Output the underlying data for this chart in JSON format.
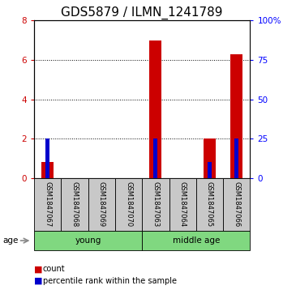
{
  "title": "GDS5879 / ILMN_1241789",
  "samples": [
    "GSM1847067",
    "GSM1847068",
    "GSM1847069",
    "GSM1847070",
    "GSM1847063",
    "GSM1847064",
    "GSM1847065",
    "GSM1847066"
  ],
  "red_values": [
    0.8,
    0.0,
    0.0,
    0.0,
    7.0,
    0.0,
    2.0,
    6.3
  ],
  "blue_values": [
    25.0,
    0.0,
    0.0,
    0.0,
    25.0,
    0.0,
    10.0,
    25.0
  ],
  "ylim_left": [
    0,
    8
  ],
  "ylim_right": [
    0,
    100
  ],
  "yticks_left": [
    0,
    2,
    4,
    6,
    8
  ],
  "yticks_right": [
    0,
    25,
    50,
    75,
    100
  ],
  "ytick_labels_right": [
    "0",
    "25",
    "50",
    "75",
    "100%"
  ],
  "groups": [
    {
      "label": "young",
      "indices": [
        0,
        1,
        2,
        3
      ]
    },
    {
      "label": "middle age",
      "indices": [
        4,
        5,
        6,
        7
      ]
    }
  ],
  "age_label": "age",
  "legend_red": "count",
  "legend_blue": "percentile rank within the sample",
  "red_color": "#cc0000",
  "blue_color": "#0000cc",
  "gray_bg": "#c8c8c8",
  "green_bg": "#80d880",
  "title_fontsize": 11,
  "tick_fontsize": 7.5,
  "label_fontsize": 7.5
}
